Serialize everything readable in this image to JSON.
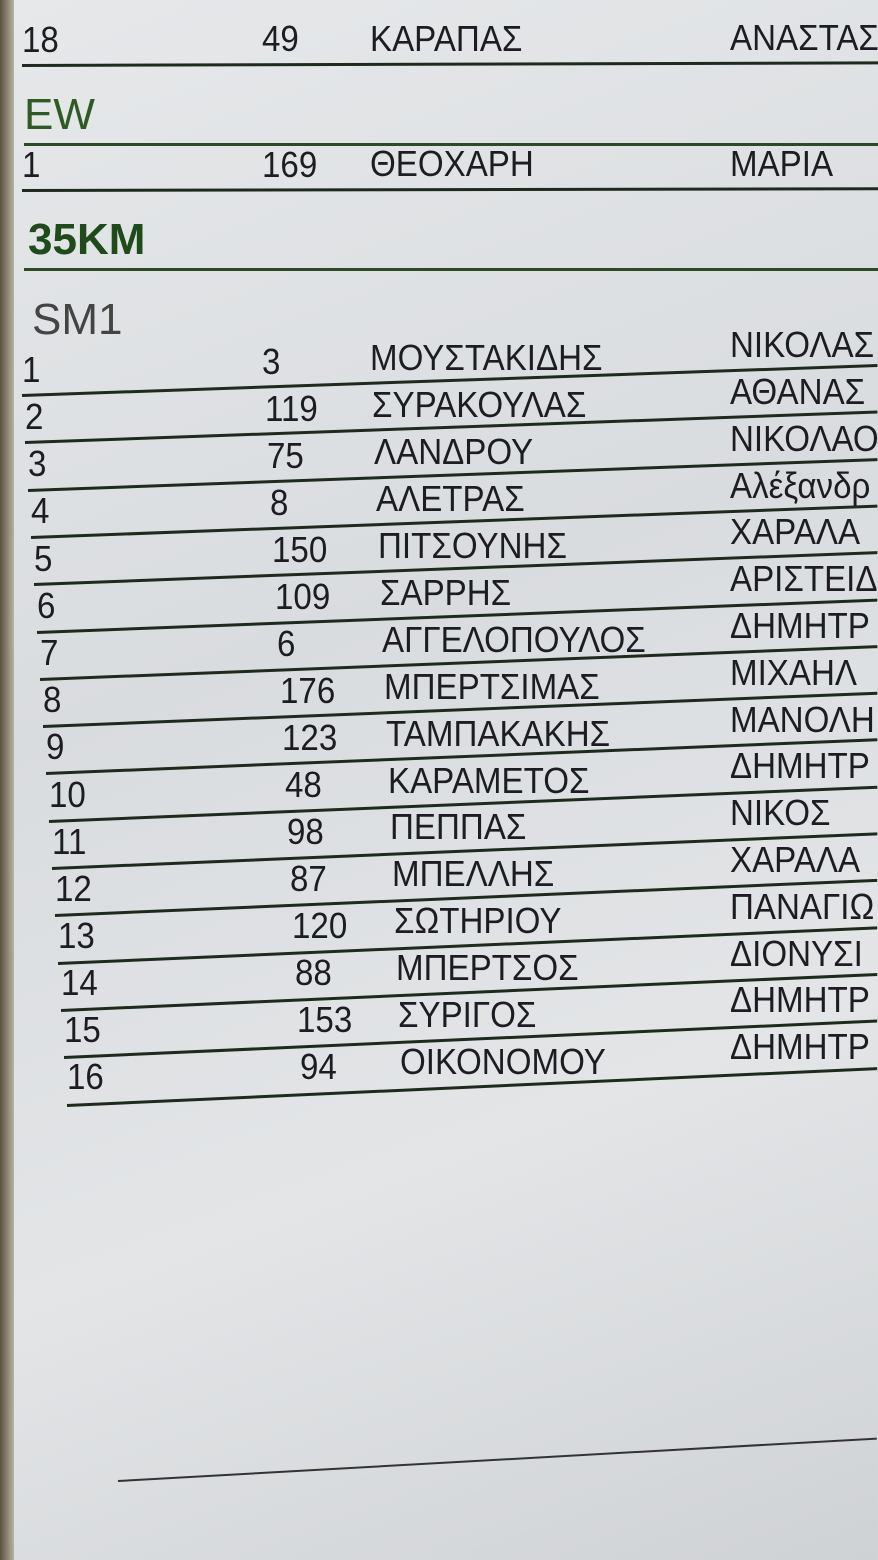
{
  "top_row": [
    "18",
    "49",
    "ΚΑΡΑΠΑΣ",
    "ΑΝΑΣΤΑΣ"
  ],
  "sections": [
    {
      "title": "EW",
      "rows": [
        [
          "1",
          "169",
          "ΘΕΟΧΑΡΗ",
          "ΜΑΡΙΑ"
        ]
      ]
    },
    {
      "title": "35KM",
      "rows": []
    },
    {
      "title": "SM1",
      "rows": [
        [
          "1",
          "3",
          "ΜΟΥΣΤΑΚΙΔΗΣ",
          "ΝΙΚΟΛΑΣ"
        ],
        [
          "2",
          "119",
          "ΣΥΡΑΚΟΥΛΑΣ",
          "ΑΘΑΝΑΣ"
        ],
        [
          "3",
          "75",
          "ΛΑΝΔΡΟΥ",
          "ΝΙΚΟΛΑΟ"
        ],
        [
          "4",
          "8",
          "ΑΛΕΤΡΑΣ",
          "Αλέξανδρ"
        ],
        [
          "5",
          "150",
          "ΠΙΤΣΟΥΝΗΣ",
          "ΧΑΡΑΛΑ"
        ],
        [
          "6",
          "109",
          "ΣΑΡΡΗΣ",
          "ΑΡΙΣΤΕΙΔ"
        ],
        [
          "7",
          "6",
          "ΑΓΓΕΛΟΠΟΥΛΟΣ",
          "ΔΗΜΗΤΡ"
        ],
        [
          "8",
          "176",
          "ΜΠΕΡΤΣΙΜΑΣ",
          "ΜΙΧΑΗΛ"
        ],
        [
          "9",
          "123",
          "ΤΑΜΠΑΚΑΚΗΣ",
          "ΜΑΝΟΛΗ"
        ],
        [
          "10",
          "48",
          "ΚΑΡΑΜΕΤΟΣ",
          "ΔΗΜΗΤΡ"
        ],
        [
          "11",
          "98",
          "ΠΕΠΠΑΣ",
          "ΝΙΚΟΣ"
        ],
        [
          "12",
          "87",
          "ΜΠΕΛΛΗΣ",
          "ΧΑΡΑΛΑ"
        ],
        [
          "13",
          "120",
          "ΣΩΤΗΡΙΟΥ",
          "ΠΑΝΑΓΙΩ"
        ],
        [
          "14",
          "88",
          "ΜΠΕΡΤΣΟΣ",
          "ΔΙΟΝΥΣΙ"
        ],
        [
          "15",
          "153",
          "ΣΥΡΙΓΟΣ",
          "ΔΗΜΗΤΡ"
        ],
        [
          "16",
          "94",
          "ΟΙΚΟΝΟΜΟΥ",
          "ΔΗΜΗΤΡ"
        ]
      ]
    }
  ]
}
